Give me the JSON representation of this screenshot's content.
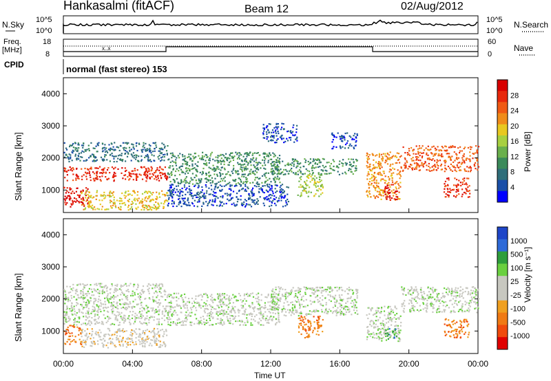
{
  "header": {
    "title": "Hankasalmi (fitACF)",
    "beam": "Beam 12",
    "date": "02/Aug/2012"
  },
  "panels": {
    "nsky": {
      "label": "N.Sky",
      "ticks": [
        "10^5",
        "10^0"
      ]
    },
    "nsearch": {
      "label": "N.Search",
      "ticks": [
        "10^5",
        "10^0"
      ]
    },
    "freq": {
      "label_line1": "Freq.",
      "label_line2": "[MHz]",
      "ticks": [
        "18",
        "8"
      ]
    },
    "nave": {
      "label": "Nave",
      "ticks": [
        "60",
        "0"
      ]
    },
    "cpid": {
      "label": "CPID",
      "text": "normal (fast stereo) 153"
    }
  },
  "colors": {
    "power_scale": [
      "#0000ff",
      "#1a4fa8",
      "#2f6e7a",
      "#3b8a5a",
      "#6ab04c",
      "#a8d040",
      "#e8c820",
      "#f08c1a",
      "#f05a14",
      "#e8280c",
      "#d80000"
    ],
    "velocity_scale": [
      "#1e46c8",
      "#2e6ad8",
      "#2e9e3c",
      "#6ad040",
      "#c8c8c0",
      "#c8c8c0",
      "#f0a020",
      "#f07a14",
      "#f04a0c",
      "#e00000"
    ],
    "frame": "#000000"
  },
  "chart_data": [
    {
      "type": "heatmap",
      "name": "power",
      "xlabel": "",
      "ylabel": "Slant Range [km]",
      "y_ticks": [
        "1000",
        "2000",
        "3000",
        "4000"
      ],
      "ylim": [
        300,
        4500
      ],
      "colorbar": {
        "label": "Power [dB]",
        "ticks": [
          "4",
          "8",
          "12",
          "16",
          "20",
          "24",
          "28"
        ]
      },
      "bands": [
        {
          "t0": 0.0,
          "t1": 6.0,
          "r0": 1300,
          "r1": 1750,
          "level": 9
        },
        {
          "t0": 0.0,
          "t1": 1.5,
          "r0": 500,
          "r1": 1100,
          "level": 10
        },
        {
          "t0": 0.0,
          "t1": 6.0,
          "r0": 1900,
          "r1": 2500,
          "level": 2
        },
        {
          "t0": 1.0,
          "t1": 6.0,
          "r0": 400,
          "r1": 1000,
          "level": 6
        },
        {
          "t0": 6.0,
          "t1": 12.5,
          "r0": 1200,
          "r1": 2200,
          "level": 3
        },
        {
          "t0": 6.0,
          "t1": 13.0,
          "r0": 500,
          "r1": 1200,
          "level": 1
        },
        {
          "t0": 12.0,
          "t1": 17.0,
          "r0": 1500,
          "r1": 2000,
          "level": 3
        },
        {
          "t0": 13.5,
          "t1": 15.0,
          "r0": 800,
          "r1": 1500,
          "level": 5
        },
        {
          "t0": 17.5,
          "t1": 19.5,
          "r0": 700,
          "r1": 2200,
          "level": 7
        },
        {
          "t0": 18.5,
          "t1": 19.3,
          "r0": 700,
          "r1": 1200,
          "level": 10
        },
        {
          "t0": 19.5,
          "t1": 24.0,
          "r0": 1600,
          "r1": 2400,
          "level": 8
        },
        {
          "t0": 22.0,
          "t1": 23.5,
          "r0": 800,
          "r1": 1400,
          "level": 9
        },
        {
          "t0": 15.5,
          "t1": 17.0,
          "r0": 2300,
          "r1": 2800,
          "level": 1
        },
        {
          "t0": 11.5,
          "t1": 13.5,
          "r0": 2500,
          "r1": 3100,
          "level": 1
        }
      ]
    },
    {
      "type": "heatmap",
      "name": "velocity",
      "xlabel": "Time UT",
      "ylabel": "Slant Range [km]",
      "x_ticks": [
        "00:00",
        "04:00",
        "08:00",
        "12:00",
        "16:00",
        "20:00",
        "00:00"
      ],
      "xlim": [
        0,
        24
      ],
      "y_ticks": [
        "1000",
        "2000",
        "3000",
        "4000"
      ],
      "ylim": [
        300,
        4500
      ],
      "colorbar": {
        "label": "Velocity [m s⁻¹]",
        "ticks": [
          "1000",
          "500",
          "100",
          "25",
          "-25",
          "-100",
          "-500",
          "-1000"
        ]
      },
      "bands": [
        {
          "t0": 0.0,
          "t1": 6.0,
          "r0": 1200,
          "r1": 2500,
          "level": 4
        },
        {
          "t0": 0.0,
          "t1": 1.0,
          "r0": 600,
          "r1": 1200,
          "level": 7
        },
        {
          "t0": 1.0,
          "t1": 6.0,
          "r0": 500,
          "r1": 1100,
          "level": 5
        },
        {
          "t0": 6.0,
          "t1": 12.5,
          "r0": 1200,
          "r1": 2200,
          "level": 4
        },
        {
          "t0": 12.0,
          "t1": 17.0,
          "r0": 1500,
          "r1": 2400,
          "level": 4
        },
        {
          "t0": 13.5,
          "t1": 15.0,
          "r0": 800,
          "r1": 1500,
          "level": 7
        },
        {
          "t0": 17.5,
          "t1": 19.5,
          "r0": 700,
          "r1": 1800,
          "level": 4
        },
        {
          "t0": 18.6,
          "t1": 19.3,
          "r0": 700,
          "r1": 1100,
          "level": 2
        },
        {
          "t0": 19.5,
          "t1": 24.0,
          "r0": 1600,
          "r1": 2400,
          "level": 4
        },
        {
          "t0": 22.0,
          "t1": 23.5,
          "r0": 800,
          "r1": 1400,
          "level": 7
        }
      ]
    }
  ],
  "xaxis": {
    "label": "Time UT"
  }
}
